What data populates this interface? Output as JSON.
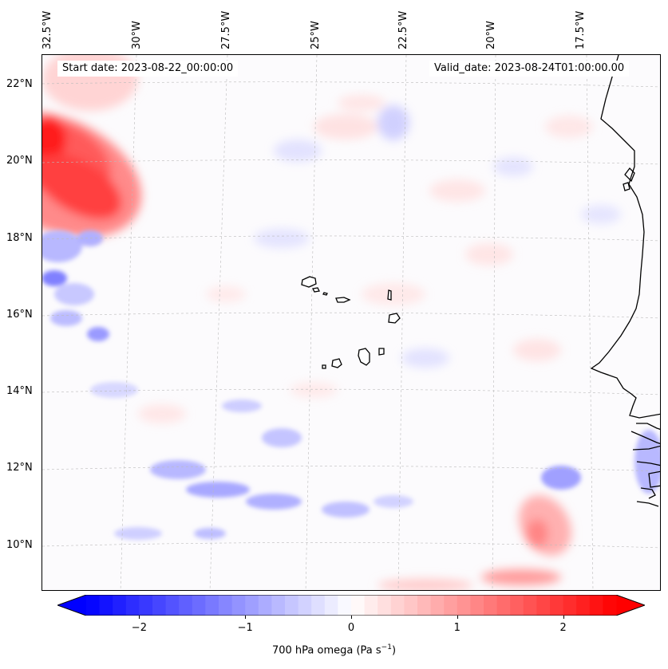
{
  "map": {
    "start_date_text": "Start date: 2023-08-22_00:00:00",
    "valid_date_text": "Valid_date: 2023-08-24T01:00:00.00",
    "lon_labels": [
      "32.5°W",
      "30°W",
      "27.5°W",
      "25°W",
      "22.5°W",
      "20°W",
      "17.5°W"
    ],
    "lat_labels": [
      "22°N",
      "20°N",
      "18°N",
      "16°N",
      "14°N",
      "12°N",
      "10°N"
    ],
    "field": "700 hPa omega",
    "projection": "rotated regional grid with dashed graticule",
    "coastlines": [
      "Cape Verde islands",
      "West African coast"
    ],
    "colors": {
      "negative": "#0000ff",
      "neutral": "#ffffff",
      "positive": "#ff0000",
      "graticule": "#bbbbbb",
      "coastline": "#000000"
    }
  },
  "colorbar": {
    "min": -2.5,
    "max": 2.5,
    "ticks": [
      "−2",
      "−1",
      "0",
      "1",
      "2"
    ],
    "tick_values": [
      -2,
      -1,
      0,
      1,
      2
    ],
    "label_text": "700 hPa omega (Pa s",
    "label_sup": "−1",
    "label_close": ")",
    "extend": "both"
  }
}
